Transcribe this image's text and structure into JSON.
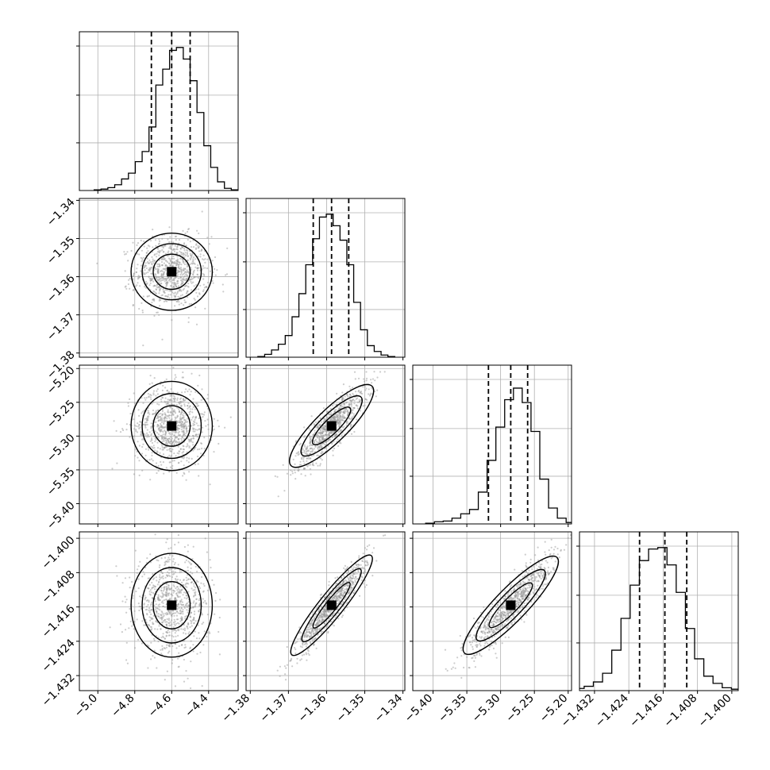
{
  "chart_data": {
    "type": "corner",
    "grid": true,
    "params": [
      {
        "median": -4.6,
        "lo": -4.71,
        "hi": -4.5,
        "ticks": [
          -5.0,
          -4.8,
          -4.6,
          -4.4
        ],
        "tick_labels": [
          "−5.0",
          "−4.8",
          "−4.6",
          "−4.4"
        ],
        "range": [
          -5.1,
          -4.24
        ]
      },
      {
        "median": -1.3587,
        "lo": -1.3635,
        "hi": -1.3542,
        "ticks": [
          -1.38,
          -1.37,
          -1.36,
          -1.35,
          -1.34
        ],
        "tick_labels": [
          "−1.38",
          "−1.37",
          "−1.36",
          "−1.35",
          "−1.34"
        ],
        "range": [
          -1.3811,
          -1.3395
        ]
      },
      {
        "median": -5.285,
        "lo": -5.318,
        "hi": -5.26,
        "ticks": [
          -5.4,
          -5.35,
          -5.3,
          -5.25,
          -5.2
        ],
        "tick_labels": [
          "−5.40",
          "−5.35",
          "−5.30",
          "−5.25",
          "−5.20"
        ],
        "range": [
          -5.43,
          -5.195
        ]
      },
      {
        "median": -1.4156,
        "lo": -1.4215,
        "hi": -1.4105,
        "ticks": [
          -1.432,
          -1.424,
          -1.416,
          -1.408,
          -1.4
        ],
        "tick_labels": [
          "−1.432",
          "−1.424",
          "−1.416",
          "−1.408",
          "−1.400"
        ],
        "range": [
          -1.4355,
          -1.3985
        ]
      }
    ],
    "histograms": [
      [
        0.005,
        0.01,
        0.02,
        0.04,
        0.08,
        0.12,
        0.2,
        0.27,
        0.44,
        0.73,
        0.84,
        0.97,
        0.99,
        0.91,
        0.76,
        0.54,
        0.31,
        0.16,
        0.06,
        0.015,
        0.005
      ],
      [
        0.005,
        0.02,
        0.05,
        0.09,
        0.15,
        0.28,
        0.44,
        0.64,
        0.82,
        0.97,
        0.99,
        0.91,
        0.81,
        0.64,
        0.38,
        0.19,
        0.08,
        0.04,
        0.015,
        0.005
      ],
      [
        0.005,
        0.015,
        0.02,
        0.04,
        0.07,
        0.1,
        0.22,
        0.44,
        0.67,
        0.86,
        0.94,
        0.84,
        0.64,
        0.31,
        0.11,
        0.04,
        0.01,
        0.005
      ],
      [
        0.005,
        0.015,
        0.03,
        0.06,
        0.12,
        0.28,
        0.5,
        0.73,
        0.9,
        0.98,
        0.99,
        0.87,
        0.68,
        0.43,
        0.22,
        0.1,
        0.05,
        0.02,
        0.01,
        0.005
      ]
    ],
    "correlations": [
      [
        1,
        0,
        0,
        0
      ],
      [
        0,
        1,
        0,
        0
      ],
      [
        0,
        0.85,
        1,
        0
      ],
      [
        0,
        0.93,
        0.89,
        1
      ]
    ],
    "sd": [
      0.1,
      0.0046,
      0.03,
      0.0055
    ]
  }
}
